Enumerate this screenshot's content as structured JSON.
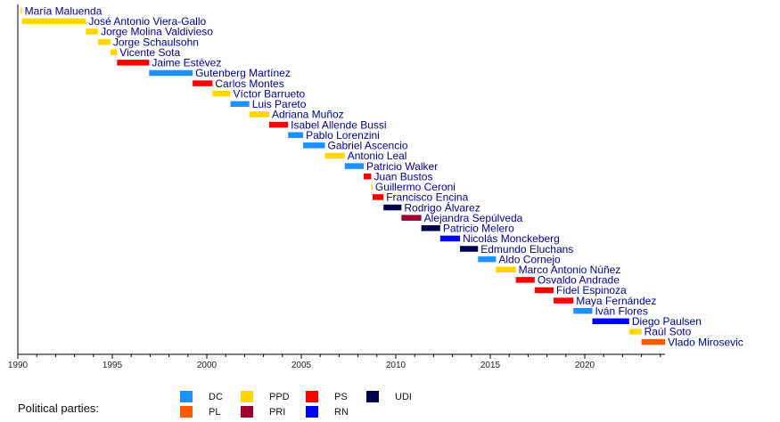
{
  "chart_data": {
    "type": "timeline",
    "title": "",
    "xlabel": "",
    "xlim": [
      1990,
      2024.25
    ],
    "tick_labels": [
      "1990",
      "1995",
      "2000",
      "2005",
      "2010",
      "2015",
      "2020"
    ],
    "parties": {
      "DC": "#1e90ff",
      "PL": "#ff5a00",
      "PPD": "#ffd700",
      "PRI": "#a00030",
      "PS": "#ff0000",
      "RN": "#0000ff",
      "UDI": "#000050"
    },
    "series": [
      {
        "name": "María Maluenda",
        "party": "PPD",
        "start": 1990.15,
        "end": 1990.22
      },
      {
        "name": "José Antonio Viera-Gallo",
        "party": "PPD",
        "start": 1990.22,
        "end": 1993.6
      },
      {
        "name": "Jorge Molina Valdivieso",
        "party": "PPD",
        "start": 1993.6,
        "end": 1994.25
      },
      {
        "name": "Jorge Schaulsohn",
        "party": "PPD",
        "start": 1994.25,
        "end": 1994.9
      },
      {
        "name": "Vicente Sota",
        "party": "PPD",
        "start": 1994.9,
        "end": 1995.25
      },
      {
        "name": "Jaime Estévez",
        "party": "PS",
        "start": 1995.25,
        "end": 1996.95
      },
      {
        "name": "Gutenberg Martínez",
        "party": "DC",
        "start": 1996.95,
        "end": 1999.25
      },
      {
        "name": "Carlos Montes",
        "party": "PS",
        "start": 1999.25,
        "end": 2000.3
      },
      {
        "name": "Víctor Barrueto",
        "party": "PPD",
        "start": 2000.3,
        "end": 2001.25
      },
      {
        "name": "Luis Pareto",
        "party": "DC",
        "start": 2001.25,
        "end": 2002.25
      },
      {
        "name": "Adriana Muñoz",
        "party": "PPD",
        "start": 2002.25,
        "end": 2003.3
      },
      {
        "name": "Isabel Allende Bussi",
        "party": "PS",
        "start": 2003.3,
        "end": 2004.3
      },
      {
        "name": "Pablo Lorenzini",
        "party": "DC",
        "start": 2004.3,
        "end": 2005.1
      },
      {
        "name": "Gabriel Ascencio",
        "party": "DC",
        "start": 2005.1,
        "end": 2006.25
      },
      {
        "name": "Antonio Leal",
        "party": "PPD",
        "start": 2006.25,
        "end": 2007.3
      },
      {
        "name": "Patricio Walker",
        "party": "DC",
        "start": 2007.3,
        "end": 2008.3
      },
      {
        "name": "Juan Bustos",
        "party": "PS",
        "start": 2008.3,
        "end": 2008.7
      },
      {
        "name": "Guillermo Ceroni",
        "party": "PPD",
        "start": 2008.7,
        "end": 2008.77
      },
      {
        "name": "Francisco Encina",
        "party": "PS",
        "start": 2008.77,
        "end": 2009.35
      },
      {
        "name": "Rodrigo Álvarez",
        "party": "UDI",
        "start": 2009.35,
        "end": 2010.3
      },
      {
        "name": "Alejandra Sepúlveda",
        "party": "PRI",
        "start": 2010.3,
        "end": 2011.35
      },
      {
        "name": "Patricio Melero",
        "party": "UDI",
        "start": 2011.35,
        "end": 2012.35
      },
      {
        "name": "Nicolás Monckeberg",
        "party": "RN",
        "start": 2012.35,
        "end": 2013.4
      },
      {
        "name": "Edmundo Eluchans",
        "party": "UDI",
        "start": 2013.4,
        "end": 2014.35
      },
      {
        "name": "Aldo Cornejo",
        "party": "DC",
        "start": 2014.35,
        "end": 2015.3
      },
      {
        "name": "Marco Antonio Núñez",
        "party": "PPD",
        "start": 2015.3,
        "end": 2016.35
      },
      {
        "name": "Osvaldo Andrade",
        "party": "PS",
        "start": 2016.35,
        "end": 2017.35
      },
      {
        "name": "Fidel Espinoza",
        "party": "PS",
        "start": 2017.35,
        "end": 2018.35
      },
      {
        "name": "Maya Fernández",
        "party": "PS",
        "start": 2018.35,
        "end": 2019.4
      },
      {
        "name": "Iván Flores",
        "party": "DC",
        "start": 2019.4,
        "end": 2020.4
      },
      {
        "name": "Diego Paulsen",
        "party": "RN",
        "start": 2020.4,
        "end": 2022.35
      },
      {
        "name": "Raúl Soto",
        "party": "PPD",
        "start": 2022.35,
        "end": 2023.0
      },
      {
        "name": "Vlado Mirosevic",
        "party": "PL",
        "start": 2023.0,
        "end": 2024.25
      }
    ],
    "legend": {
      "title": "Political parties:",
      "placement": "bottom",
      "items": [
        "DC",
        "PL",
        "PPD",
        "PRI",
        "PS",
        "RN",
        "UDI"
      ]
    }
  }
}
